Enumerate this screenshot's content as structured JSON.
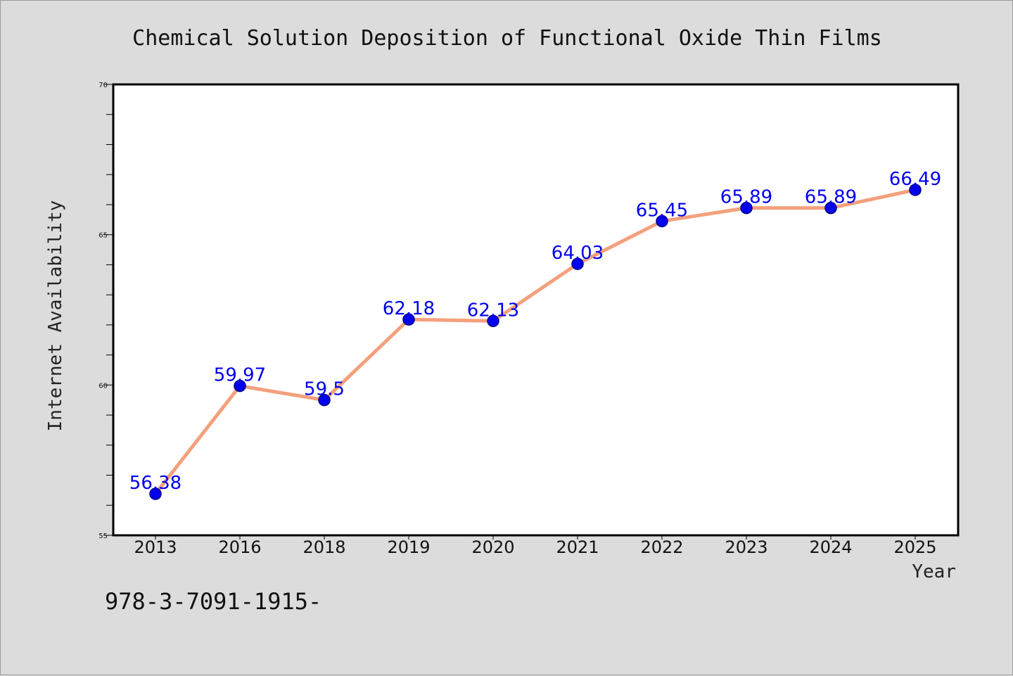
{
  "chart_data": {
    "type": "line",
    "title": "Chemical Solution Deposition of Functional Oxide Thin Films",
    "xlabel": "Year",
    "ylabel": "Internet Availability",
    "categories": [
      "2013",
      "2016",
      "2018",
      "2019",
      "2020",
      "2021",
      "2022",
      "2023",
      "2024",
      "2025"
    ],
    "series": [
      {
        "values": [
          56.38,
          59.97,
          59.5,
          62.18,
          62.13,
          64.03,
          65.45,
          65.89,
          65.89,
          66.49
        ],
        "data_labels": [
          "56.38",
          "59.97",
          "59.5",
          "62.18",
          "62.13",
          "64.03",
          "65.45",
          "65.89",
          "65.89",
          "66.49"
        ]
      }
    ],
    "ylim": [
      55,
      70
    ],
    "yticks": [
      "55",
      "60",
      "65",
      "70"
    ],
    "grid": false,
    "colors": {
      "line": "#f4a07c",
      "marker": "#0000ee",
      "label": "#0000ee",
      "background": "#dcdcdc",
      "plot_background": "#ffffff"
    }
  },
  "footer": {
    "isbn": "978-3-7091-1915-"
  }
}
